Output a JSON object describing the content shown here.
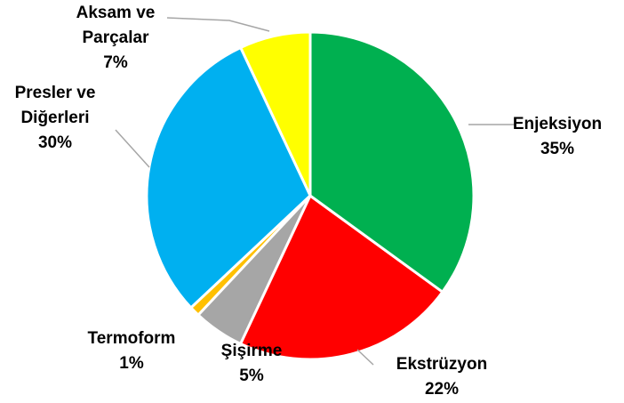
{
  "chart_data": {
    "type": "pie",
    "categories": [
      "Enjeksiyon",
      "Ekstrüzyon",
      "Şişirme",
      "Termoform",
      "Presler ve Diğerleri",
      "Aksam ve Parçalar"
    ],
    "values": [
      35,
      22,
      5,
      1,
      30,
      7
    ],
    "value_labels": [
      "35%",
      "22%",
      "5%",
      "1%",
      "30%",
      "7%"
    ],
    "colors": [
      "#00b050",
      "#ff0000",
      "#a6a6a6",
      "#ffc000",
      "#00b0f0",
      "#ffff00"
    ]
  }
}
